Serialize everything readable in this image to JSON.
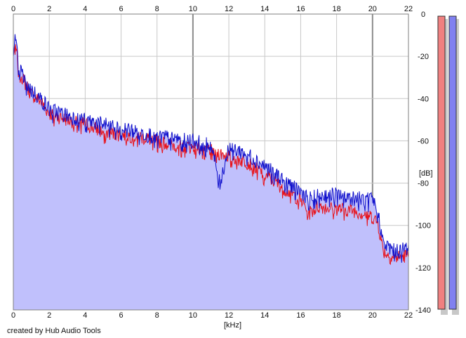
{
  "chart_data": {
    "type": "area",
    "title": "",
    "xlabel": "[kHz]",
    "ylabel": "[dB]",
    "xlim": [
      0,
      22
    ],
    "ylim": [
      -140,
      0
    ],
    "x_ticks": [
      "0",
      "2",
      "4",
      "6",
      "8",
      "10",
      "12",
      "14",
      "16",
      "18",
      "20",
      "22"
    ],
    "x_ticks_top": [
      "0",
      "2",
      "4",
      "6",
      "8",
      "10",
      "12",
      "14",
      "16",
      "18",
      "20",
      "22"
    ],
    "y_ticks": [
      "0",
      "-20",
      "-40",
      "-60",
      "-80",
      "-100",
      "-120",
      "-140"
    ],
    "grid": true,
    "legend": "none",
    "series": [
      {
        "color": "#e8131b",
        "x": [
          0,
          0.1,
          0.3,
          0.6,
          1,
          1.5,
          2,
          3,
          4,
          5,
          6,
          7,
          8,
          9,
          10,
          11,
          11.5,
          12,
          13,
          14,
          15,
          16,
          16.5,
          17,
          18,
          19,
          20,
          20.3,
          20.6,
          21,
          21.5,
          22
        ],
        "values": [
          -18,
          -14,
          -26,
          -32,
          -38,
          -41,
          -47,
          -50,
          -52,
          -56,
          -57,
          -58,
          -60,
          -62,
          -63,
          -64,
          -66,
          -67,
          -70,
          -76,
          -82,
          -88,
          -94,
          -91,
          -92,
          -93,
          -96,
          -99,
          -112,
          -115,
          -115,
          -114
        ]
      },
      {
        "color": "#1111cc",
        "x": [
          0,
          0.1,
          0.3,
          0.6,
          1,
          1.5,
          2,
          3,
          4,
          5,
          6,
          7,
          8,
          9,
          10,
          11,
          11.5,
          12,
          13,
          14,
          15,
          16,
          16.5,
          17,
          18,
          19,
          20,
          20.3,
          20.6,
          21,
          21.5,
          22
        ],
        "values": [
          -16,
          -12,
          -24,
          -31,
          -36,
          -40,
          -45,
          -48,
          -50,
          -52,
          -54,
          -56,
          -58,
          -59,
          -60,
          -62,
          -80,
          -63,
          -66,
          -72,
          -78,
          -84,
          -87,
          -86,
          -85,
          -87,
          -88,
          -93,
          -109,
          -111,
          -112,
          -110
        ]
      }
    ],
    "fill": {
      "color": "#c0c0fc"
    },
    "level_meters": [
      {
        "color": "#f08080"
      },
      {
        "color": "#8080f0"
      }
    ],
    "footer": "created by Hub Audio Tools"
  }
}
